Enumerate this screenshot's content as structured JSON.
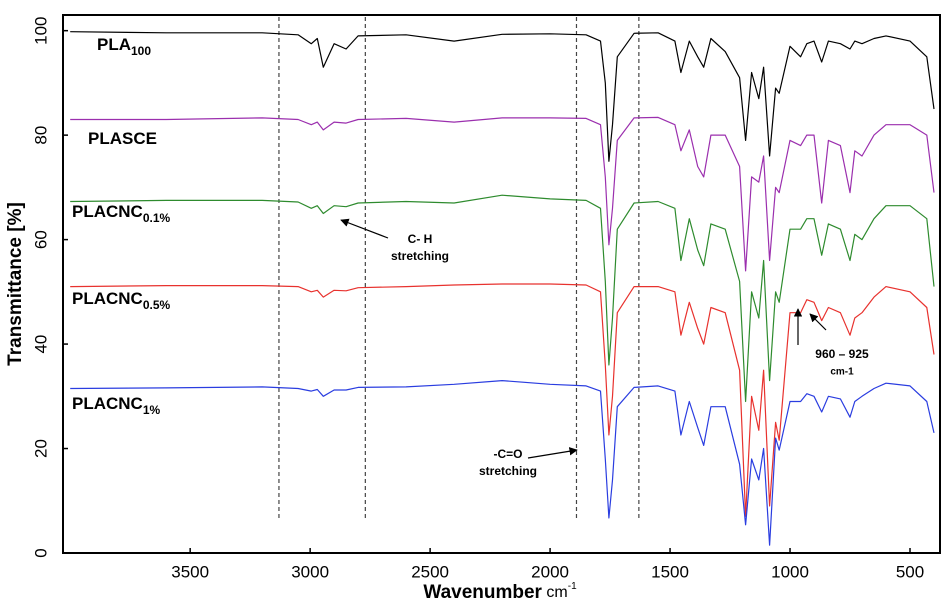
{
  "chart_data": {
    "type": "line",
    "xlabel": "Wavenumber",
    "xlabel_unit": "cm",
    "xlabel_unit_sup": "-1",
    "ylabel": "Transmittance [%]",
    "xlim": [
      4030,
      375
    ],
    "ylim": [
      0,
      103
    ],
    "xticks": [
      3500,
      3000,
      2500,
      2000,
      1500,
      1000,
      500
    ],
    "yticks": [
      0,
      20,
      40,
      60,
      80,
      100
    ],
    "reference_lines": [
      3130,
      2770,
      1890,
      1630
    ],
    "x": [
      4000,
      3600,
      3200,
      3050,
      2995,
      2970,
      2945,
      2900,
      2850,
      2800,
      2600,
      2400,
      2200,
      2000,
      1850,
      1790,
      1770,
      1755,
      1740,
      1720,
      1650,
      1550,
      1480,
      1455,
      1420,
      1385,
      1360,
      1330,
      1270,
      1210,
      1185,
      1160,
      1130,
      1110,
      1085,
      1060,
      1045,
      1000,
      956,
      930,
      900,
      868,
      840,
      790,
      750,
      730,
      700,
      650,
      600,
      500,
      430,
      400
    ],
    "series": [
      {
        "name": "PLA",
        "subscript": "100",
        "color": "#000000",
        "values": [
          99.8,
          99.6,
          99.6,
          99.2,
          97.5,
          98.5,
          93,
          97.5,
          96.5,
          99,
          99.2,
          98,
          99.3,
          99.4,
          99.2,
          98,
          90,
          75,
          82,
          95,
          99.5,
          99.6,
          98,
          92,
          98,
          95,
          93,
          98.5,
          96,
          91,
          79,
          92,
          87,
          93,
          76,
          89,
          88,
          97,
          95,
          97.5,
          98,
          94,
          98,
          97.5,
          96.5,
          98,
          97.5,
          98.5,
          99,
          98,
          95,
          85
        ]
      },
      {
        "name": "PLASCE",
        "color": "#9b2fae",
        "values": [
          83,
          83,
          83.3,
          83,
          82,
          82.5,
          81,
          82.5,
          82.3,
          83,
          83.2,
          82.5,
          83.3,
          83.3,
          83.2,
          82,
          72,
          59,
          66,
          79,
          83.3,
          83.4,
          82,
          77,
          81,
          74,
          72,
          80,
          80,
          74,
          54,
          72,
          71,
          76,
          56,
          70,
          69,
          79,
          78,
          80,
          80,
          67,
          79,
          78,
          69,
          77,
          76,
          80,
          82,
          82,
          80,
          69
        ]
      },
      {
        "name": "PLACNC",
        "subscript": "0.1%",
        "color": "#2e8b2e",
        "values": [
          67.3,
          67.5,
          67.5,
          67.2,
          66,
          66.5,
          65,
          66.5,
          66.3,
          67,
          67.3,
          67,
          68.5,
          67.8,
          67.5,
          66,
          52,
          36,
          45,
          62,
          67,
          67.3,
          66,
          56,
          64,
          58,
          55,
          63,
          62,
          52,
          29,
          50,
          45,
          56,
          33,
          50,
          48,
          62,
          62,
          64,
          64,
          57,
          63,
          62,
          56,
          61,
          60,
          64,
          66.5,
          66.5,
          64,
          51
        ]
      },
      {
        "name": "PLACNC",
        "subscript": "0.5%",
        "color": "#e8322e",
        "values": [
          51,
          51.2,
          51.2,
          51,
          50,
          50.3,
          49,
          50.3,
          50.2,
          50.8,
          51,
          51.3,
          51.5,
          51.5,
          51.3,
          50,
          36,
          22.6,
          30,
          46,
          51,
          51,
          50,
          41.7,
          48,
          43,
          40,
          47,
          46,
          35,
          7,
          30,
          23.5,
          35,
          9,
          25,
          21.6,
          46,
          46,
          48.5,
          48,
          44.5,
          47,
          46,
          41.7,
          45,
          46,
          49,
          51,
          50,
          47,
          38
        ]
      },
      {
        "name": "PLACNC",
        "subscript": "1%",
        "color": "#2a3de0",
        "values": [
          31.5,
          31.6,
          31.8,
          31.5,
          31,
          31.3,
          30,
          31.2,
          31.2,
          31.7,
          31.8,
          32.3,
          33,
          32.3,
          32,
          31,
          18,
          6.7,
          14,
          28,
          31.7,
          32,
          31,
          22.6,
          29,
          24,
          20.6,
          28,
          28,
          17,
          5.4,
          18,
          14,
          20,
          1.5,
          22,
          19.7,
          29,
          29,
          30.5,
          30,
          27,
          30,
          29.5,
          26,
          29,
          30,
          31.5,
          32.5,
          32,
          29,
          23
        ]
      }
    ],
    "annotations": [
      {
        "lines": [
          "C- H",
          "stretching"
        ]
      },
      {
        "lines": [
          "-C=O",
          "stretching"
        ]
      },
      {
        "lines": [
          "960 – 925",
          "cm-1"
        ]
      }
    ]
  }
}
